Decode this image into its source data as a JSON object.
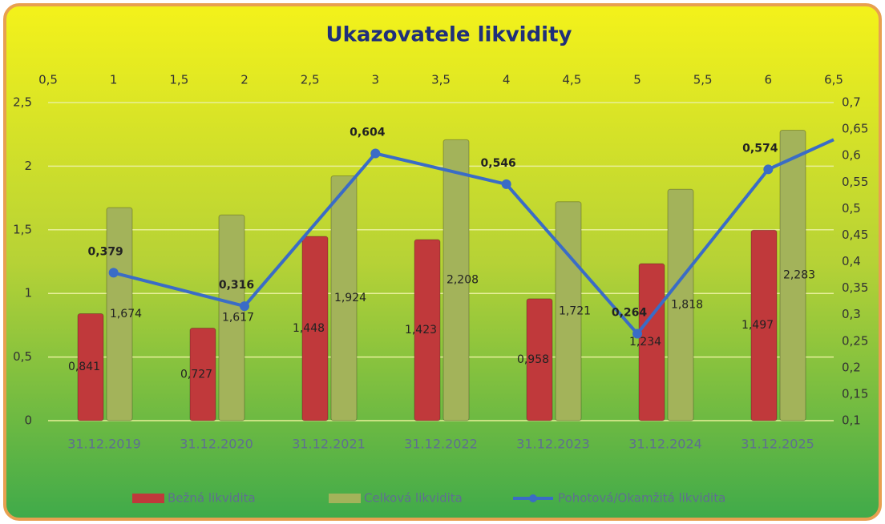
{
  "chart_data": {
    "type": "bar",
    "title": "Ukazovatele likvidity",
    "categories": [
      "31.12.2019",
      "31.12.2020",
      "31.12.2021",
      "31.12.2022",
      "31.12.2023",
      "31.12.2024",
      "31.12.2025"
    ],
    "series": [
      {
        "name": "Bežná likvidita",
        "color": "#c0393b",
        "values": [
          0.841,
          0.727,
          1.448,
          1.423,
          0.958,
          1.234,
          1.497
        ],
        "value_labels": [
          "0,841",
          "0,727",
          "1,448",
          "1,423",
          "0,958",
          "1,234",
          "1,497"
        ]
      },
      {
        "name": "Celková likvidita",
        "color": "#a3b35a",
        "values": [
          1.674,
          1.617,
          1.924,
          2.208,
          1.721,
          1.818,
          2.283
        ],
        "value_labels": [
          "1,674",
          "1,617",
          "1,924",
          "2,208",
          "1,721",
          "1,818",
          "2,283"
        ]
      },
      {
        "name": "Pohotová/Okamžitá likvidita",
        "color": "#3a6cc6",
        "type": "line",
        "axis": "y2",
        "x": [
          1,
          2,
          3,
          4,
          5,
          6,
          6.5
        ],
        "values": [
          0.379,
          0.316,
          0.604,
          0.546,
          0.264,
          0.574,
          0.63
        ],
        "value_labels": [
          "0,379",
          "0,316",
          "0,604",
          "0,546",
          "0,264",
          "0,574",
          null
        ]
      }
    ],
    "ylim": [
      0,
      2.5
    ],
    "yticks": [
      0,
      {
        "value": 0.5,
        "label": "0,5"
      },
      1,
      {
        "value": 1.5,
        "label": "1,5"
      },
      2,
      {
        "value": 2.5,
        "label": "2,5"
      }
    ],
    "y2lim": [
      0.1,
      0.7
    ],
    "y2ticks": [
      {
        "value": 0.1,
        "label": "0,1"
      },
      {
        "value": 0.15,
        "label": "0,15"
      },
      {
        "value": 0.2,
        "label": "0,2"
      },
      {
        "value": 0.25,
        "label": "0,25"
      },
      {
        "value": 0.3,
        "label": "0,3"
      },
      {
        "value": 0.35,
        "label": "0,35"
      },
      {
        "value": 0.4,
        "label": "0,4"
      },
      {
        "value": 0.45,
        "label": "0,45"
      },
      {
        "value": 0.5,
        "label": "0,5"
      },
      {
        "value": 0.55,
        "label": "0,55"
      },
      {
        "value": 0.6,
        "label": "0,6"
      },
      {
        "value": 0.65,
        "label": "0,65"
      },
      {
        "value": 0.7,
        "label": "0,7"
      }
    ],
    "x2lim": [
      0.5,
      6.5
    ],
    "x2ticks": [
      {
        "value": 0.5,
        "label": "0,5"
      },
      1,
      {
        "value": 1.5,
        "label": "1,5"
      },
      2,
      {
        "value": 2.5,
        "label": "2,5"
      },
      3,
      {
        "value": 3.5,
        "label": "3,5"
      },
      4,
      {
        "value": 4.5,
        "label": "4,5"
      },
      5,
      {
        "value": 5.5,
        "label": "5,5"
      },
      6,
      {
        "value": 6.5,
        "label": "6,5"
      }
    ],
    "grid": true,
    "legend": "bottom"
  }
}
